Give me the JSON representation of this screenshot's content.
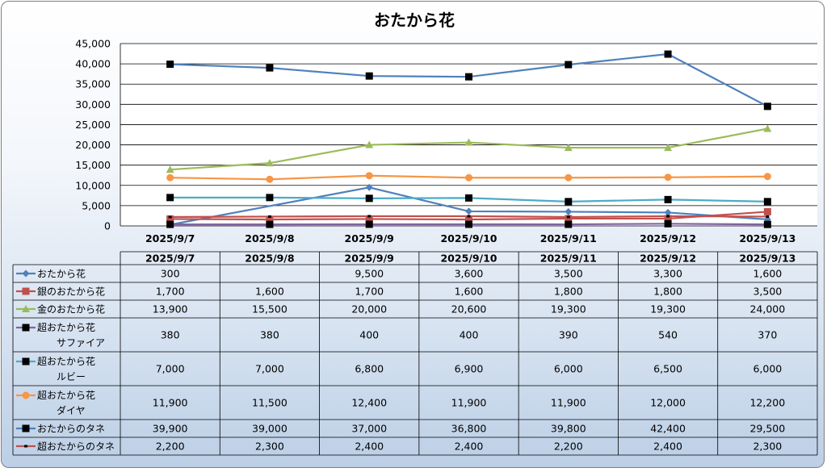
{
  "chart_data": {
    "type": "line",
    "title": "おたから花",
    "categories": [
      "2025/9/7",
      "2025/9/8",
      "2025/9/9",
      "2025/9/10",
      "2025/9/11",
      "2025/9/12",
      "2025/9/13"
    ],
    "ylim": [
      0,
      45000
    ],
    "yticks": [
      "0",
      "5,000",
      "10,000",
      "15,000",
      "20,000",
      "25,000",
      "30,000",
      "35,000",
      "40,000",
      "45,000"
    ],
    "ytick_values": [
      0,
      5000,
      10000,
      15000,
      20000,
      25000,
      30000,
      35000,
      40000,
      45000
    ],
    "grid": true,
    "legend": "data-table",
    "series": [
      {
        "name": "おたから花",
        "color": "#4f81bd",
        "marker": "diamond",
        "values": [
          300,
          null,
          9500,
          3600,
          3500,
          3300,
          1600
        ],
        "labels": [
          "300",
          "",
          "9,500",
          "3,600",
          "3,500",
          "3,300",
          "1,600"
        ]
      },
      {
        "name": "銀のおたから花",
        "color": "#c0504d",
        "marker": "square",
        "values": [
          1700,
          1600,
          1700,
          1600,
          1800,
          1800,
          3500
        ],
        "labels": [
          "1,700",
          "1,600",
          "1,700",
          "1,600",
          "1,800",
          "1,800",
          "3,500"
        ]
      },
      {
        "name": "金のおたから花",
        "color": "#9bbb59",
        "marker": "triangle",
        "values": [
          13900,
          15500,
          20000,
          20600,
          19300,
          19300,
          24000
        ],
        "labels": [
          "13,900",
          "15,500",
          "20,000",
          "20,600",
          "19,300",
          "19,300",
          "24,000"
        ]
      },
      {
        "name": "超おたから花\nサファイア",
        "color": "#8064a2",
        "marker": "square-black",
        "values": [
          380,
          380,
          400,
          400,
          390,
          540,
          370
        ],
        "labels": [
          "380",
          "380",
          "400",
          "400",
          "390",
          "540",
          "370"
        ]
      },
      {
        "name": "超おたから花\nルビー",
        "color": "#4bacc6",
        "marker": "square-black",
        "values": [
          7000,
          7000,
          6800,
          6900,
          6000,
          6500,
          6000
        ],
        "labels": [
          "7,000",
          "7,000",
          "6,800",
          "6,900",
          "6,000",
          "6,500",
          "6,000"
        ]
      },
      {
        "name": "超おたから花\nダイヤ",
        "color": "#f79646",
        "marker": "circle",
        "values": [
          11900,
          11500,
          12400,
          11900,
          11900,
          12000,
          12200
        ],
        "labels": [
          "11,900",
          "11,500",
          "12,400",
          "11,900",
          "11,900",
          "12,000",
          "12,200"
        ]
      },
      {
        "name": "おたからのタネ",
        "color": "#4f81bd",
        "marker": "square-black",
        "values": [
          39900,
          39000,
          37000,
          36800,
          39800,
          42400,
          29500
        ],
        "labels": [
          "39,900",
          "39,000",
          "37,000",
          "36,800",
          "39,800",
          "42,400",
          "29,500"
        ]
      },
      {
        "name": "超おたからのタネ",
        "color": "#c0504d",
        "marker": "dash-black",
        "values": [
          2200,
          2300,
          2400,
          2400,
          2200,
          2400,
          2300
        ],
        "labels": [
          "2,200",
          "2,300",
          "2,400",
          "2,400",
          "2,200",
          "2,400",
          "2,300"
        ]
      }
    ]
  }
}
